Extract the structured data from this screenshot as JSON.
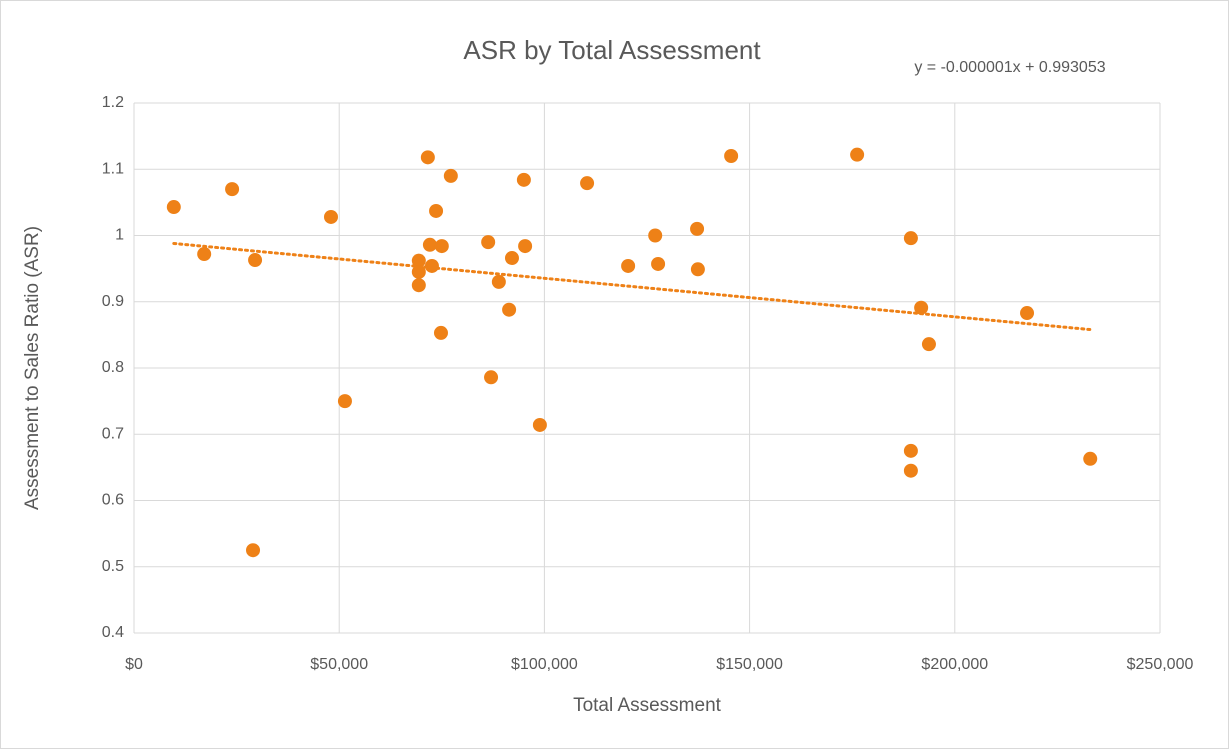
{
  "chart_data": {
    "type": "scatter",
    "title": "ASR by Total Assessment",
    "annotation": "y = -0.000001x + 0.993053",
    "x_label": "Total  Assessment",
    "y_label": "Assessment to Sales Ratio (ASR)",
    "color": "#ee8117",
    "grid": true,
    "xlim": [
      0,
      250000
    ],
    "ylim": [
      0.4,
      1.2
    ],
    "xticks": [
      {
        "value": 0,
        "label": "$0"
      },
      {
        "value": 50000,
        "label": "$50,000"
      },
      {
        "value": 100000,
        "label": "$100,000"
      },
      {
        "value": 150000,
        "label": "$150,000"
      },
      {
        "value": 200000,
        "label": "$200,000"
      },
      {
        "value": 250000,
        "label": "$250,000"
      }
    ],
    "yticks": [
      0.4,
      0.5,
      0.6,
      0.7,
      0.8,
      0.9,
      1,
      1.1,
      1.2
    ],
    "x": [
      9700,
      17100,
      23900,
      29500,
      29000,
      48000,
      51400,
      69400,
      69400,
      69400,
      71600,
      72100,
      72600,
      73600,
      75000,
      74800,
      77200,
      86300,
      87000,
      88900,
      91400,
      92100,
      95000,
      95300,
      98900,
      110400,
      120400,
      127000,
      127700,
      137200,
      137400,
      145500,
      176200,
      189300,
      191800,
      193700,
      189300,
      189300,
      217600,
      233000
    ],
    "values": [
      1.043,
      0.972,
      1.07,
      0.963,
      0.525,
      1.028,
      0.75,
      0.962,
      0.945,
      0.925,
      1.118,
      0.986,
      0.954,
      1.037,
      0.984,
      0.853,
      1.09,
      0.99,
      0.786,
      0.93,
      0.888,
      0.966,
      1.084,
      0.984,
      0.714,
      1.079,
      0.954,
      1.0,
      0.957,
      1.01,
      0.949,
      1.12,
      1.122,
      0.996,
      0.891,
      0.836,
      0.675,
      0.645,
      0.883,
      0.663
    ],
    "trendline": {
      "x": [
        9700,
        233000
      ],
      "values": [
        0.988,
        0.858
      ],
      "style": "dotted"
    }
  }
}
